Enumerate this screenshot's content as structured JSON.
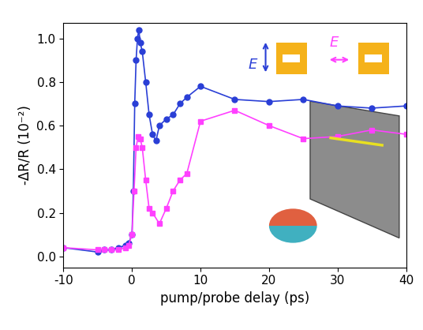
{
  "chart_data": {
    "type": "line",
    "x_label": "pump/probe delay (ps)",
    "y_label": "-ΔR/R (10⁻²)",
    "xlim": [
      -10,
      40
    ],
    "xticks": [
      -10,
      0,
      10,
      20,
      30,
      40
    ],
    "ylim": [
      -0.05,
      1.07
    ],
    "yticks": [
      {
        "value": 0.0,
        "label": "0.0"
      },
      {
        "value": 0.2,
        "label": "0.2"
      },
      {
        "value": 0.4,
        "label": "0.4"
      },
      {
        "value": 0.6,
        "label": "0.6"
      },
      {
        "value": 0.8,
        "label": "0.8"
      },
      {
        "value": 1.0,
        "label": "1.0"
      }
    ],
    "grid": false,
    "annotations": [
      {
        "text": "E",
        "color": "#2a3fd6"
      },
      {
        "text": "E",
        "color": "#ff40ff"
      }
    ],
    "series": [
      {
        "color": "#2a3fd6",
        "marker": "circle",
        "line_style": "solid",
        "x": [
          -10,
          -5,
          -4,
          -3,
          -2,
          -1,
          -0.5,
          0,
          0.2,
          0.4,
          0.6,
          0.8,
          1.0,
          1.2,
          1.5,
          2,
          2.5,
          3,
          3.5,
          4,
          5,
          6,
          7,
          8,
          10,
          15,
          20,
          25,
          30,
          35,
          40
        ],
        "values": [
          0.04,
          0.02,
          0.03,
          0.03,
          0.04,
          0.05,
          0.06,
          0.1,
          0.3,
          0.7,
          0.9,
          1.0,
          1.04,
          0.98,
          0.94,
          0.8,
          0.65,
          0.56,
          0.53,
          0.6,
          0.63,
          0.65,
          0.7,
          0.73,
          0.78,
          0.72,
          0.71,
          0.72,
          0.69,
          0.68,
          0.69
        ]
      },
      {
        "color": "#ff40ff",
        "marker": "square",
        "line_style": "solid",
        "x": [
          -10,
          -5,
          -4,
          -3,
          -2,
          -1,
          -0.5,
          0,
          0.3,
          0.6,
          0.9,
          1.2,
          1.5,
          2,
          2.5,
          3,
          4,
          5,
          6,
          7,
          8,
          10,
          15,
          20,
          25,
          30,
          35,
          40
        ],
        "values": [
          0.04,
          0.03,
          0.03,
          0.03,
          0.03,
          0.04,
          0.05,
          0.1,
          0.3,
          0.5,
          0.55,
          0.54,
          0.5,
          0.35,
          0.22,
          0.2,
          0.15,
          0.22,
          0.3,
          0.35,
          0.38,
          0.62,
          0.67,
          0.6,
          0.54,
          0.55,
          0.58,
          0.56
        ]
      }
    ]
  }
}
